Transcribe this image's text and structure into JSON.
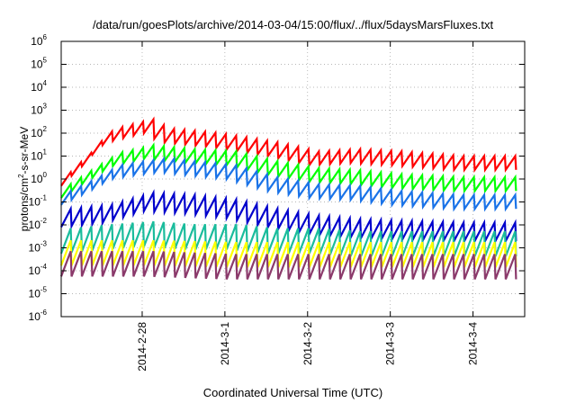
{
  "chart_data": {
    "type": "line",
    "title": "/data/run/goesPlots/archive/2014-03-04/15:00/flux/../flux/5daysMarsFluxes.txt",
    "xlabel": "Coordinated Universal Time (UTC)",
    "ylabel": {
      "base": "protons/cm",
      "sup": "2",
      "rest": "-s-sr-MeV"
    },
    "y_scale": "log",
    "ylim": [
      1e-06,
      1000000.0
    ],
    "y_ticks": [
      {
        "base": "10",
        "exp": "6",
        "v": 6
      },
      {
        "base": "10",
        "exp": "5",
        "v": 5
      },
      {
        "base": "10",
        "exp": "4",
        "v": 4
      },
      {
        "base": "10",
        "exp": "3",
        "v": 3
      },
      {
        "base": "10",
        "exp": "2",
        "v": 2
      },
      {
        "base": "10",
        "exp": "1",
        "v": 1
      },
      {
        "base": "10",
        "exp": "0",
        "v": 0
      },
      {
        "base": "10",
        "exp": "-1",
        "v": -1
      },
      {
        "base": "10",
        "exp": "-2",
        "v": -2
      },
      {
        "base": "10",
        "exp": "-3",
        "v": -3
      },
      {
        "base": "10",
        "exp": "-4",
        "v": -4
      },
      {
        "base": "10",
        "exp": "-5",
        "v": -5
      },
      {
        "base": "10",
        "exp": "-6",
        "v": -6
      }
    ],
    "xlim": [
      "2014-02-27 00:30",
      "2014-03-04 15:00"
    ],
    "x_ticks": [
      "2014-2-28",
      "2014-3-1",
      "2014-3-2",
      "2014-3-3",
      "2014-3-4"
    ],
    "grid": true,
    "series": [
      {
        "color": "#ff0000",
        "levels": [
          [
            0.0,
            1.0
          ],
          [
            0.2,
            5
          ],
          [
            0.3,
            10
          ],
          [
            0.45,
            50
          ],
          [
            0.65,
            100
          ],
          [
            1.0,
            200
          ],
          [
            1.2,
            80
          ],
          [
            1.8,
            50
          ],
          [
            2.5,
            20
          ],
          [
            3.0,
            8
          ],
          [
            3.5,
            10
          ],
          [
            4.0,
            8
          ],
          [
            4.75,
            5
          ]
        ]
      },
      {
        "color": "#00ff00",
        "levels": [
          [
            0.0,
            0.3
          ],
          [
            0.3,
            1.5
          ],
          [
            0.6,
            7
          ],
          [
            0.9,
            12
          ],
          [
            1.0,
            15
          ],
          [
            1.5,
            10
          ],
          [
            2.0,
            8
          ],
          [
            2.5,
            3
          ],
          [
            3.0,
            1.5
          ],
          [
            3.5,
            1.2
          ],
          [
            4.0,
            0.8
          ],
          [
            4.75,
            0.6
          ]
        ]
      },
      {
        "color": "#1a73e8",
        "levels": [
          [
            0.0,
            0.15
          ],
          [
            0.3,
            0.5
          ],
          [
            0.6,
            2
          ],
          [
            0.9,
            3
          ],
          [
            1.2,
            4
          ],
          [
            1.5,
            3
          ],
          [
            2.0,
            2
          ],
          [
            2.5,
            0.6
          ],
          [
            3.0,
            0.3
          ],
          [
            3.5,
            0.25
          ],
          [
            4.0,
            0.15
          ],
          [
            4.75,
            0.1
          ]
        ]
      },
      {
        "color": "#0000cc",
        "levels": [
          [
            0.0,
            0.02
          ],
          [
            0.5,
            0.03
          ],
          [
            1.0,
            0.1
          ],
          [
            1.5,
            0.08
          ],
          [
            2.0,
            0.05
          ],
          [
            2.5,
            0.02
          ],
          [
            3.0,
            0.01
          ],
          [
            3.5,
            0.007
          ],
          [
            4.0,
            0.006
          ],
          [
            4.75,
            0.005
          ]
        ]
      },
      {
        "color": "#1abc9c",
        "levels": [
          [
            0.0,
            0.002
          ],
          [
            0.5,
            0.003
          ],
          [
            1.0,
            0.004
          ],
          [
            1.5,
            0.003
          ],
          [
            2.0,
            0.003
          ],
          [
            2.5,
            0.002
          ],
          [
            3.0,
            0.002
          ],
          [
            3.5,
            0.0015
          ],
          [
            4.0,
            0.0015
          ],
          [
            4.75,
            0.0015
          ]
        ]
      },
      {
        "color": "#ffff00",
        "levels": [
          [
            0.0,
            0.0006
          ],
          [
            1.0,
            0.0006
          ],
          [
            2.0,
            0.0005
          ],
          [
            3.0,
            0.0005
          ],
          [
            4.0,
            0.0005
          ],
          [
            4.75,
            0.0005
          ]
        ]
      },
      {
        "color": "#8b3a6b",
        "levels": [
          [
            0.0,
            0.0002
          ],
          [
            1.0,
            0.0002
          ],
          [
            2.0,
            0.00015
          ],
          [
            3.0,
            0.00015
          ],
          [
            4.0,
            0.00015
          ],
          [
            4.75,
            0.00015
          ]
        ]
      }
    ]
  }
}
